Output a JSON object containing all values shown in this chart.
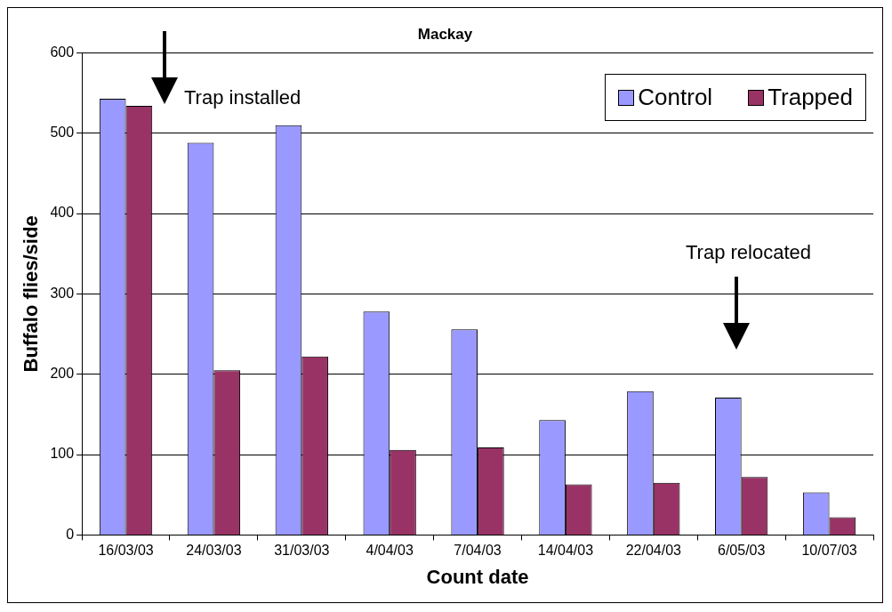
{
  "chart_data": {
    "type": "bar",
    "title": "Mackay",
    "xlabel": "Count date",
    "ylabel": "Buffalo flies/side",
    "categories": [
      "16/03/03",
      "24/03/03",
      "31/03/03",
      "4/04/03",
      "7/04/03",
      "14/04/03",
      "22/04/03",
      "6/05/03",
      "10/07/03"
    ],
    "series": [
      {
        "name": "Control",
        "color": "#9999ff",
        "values": [
          543,
          488,
          510,
          278,
          256,
          143,
          179,
          171,
          53
        ]
      },
      {
        "name": "Trapped",
        "color": "#993366",
        "values": [
          534,
          205,
          222,
          106,
          109,
          63,
          65,
          72,
          22
        ]
      }
    ],
    "ylim": [
      0,
      600
    ],
    "yticks": [
      0,
      100,
      200,
      300,
      400,
      500,
      600
    ],
    "grid": "y",
    "legend": "top right",
    "annotations": [
      "Trap installed",
      "Trap relocated"
    ]
  }
}
